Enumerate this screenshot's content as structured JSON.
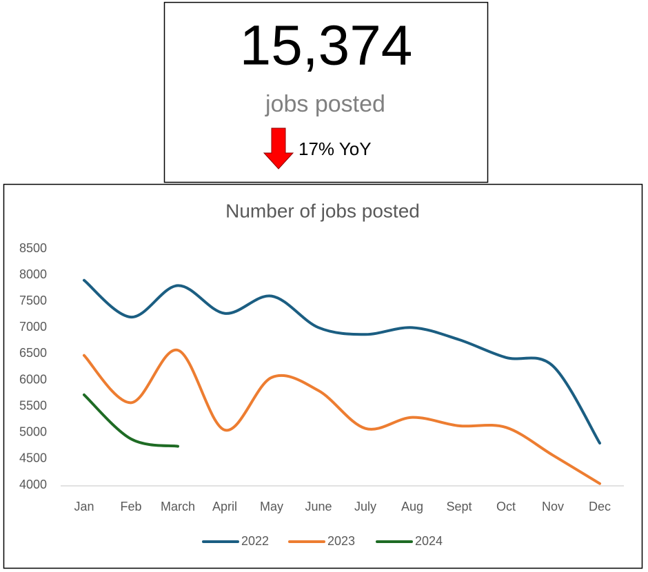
{
  "kpi": {
    "value": "15,374",
    "label": "jobs posted",
    "change": "17% YoY"
  },
  "chart_data": {
    "type": "line",
    "title": "Number of jobs posted",
    "categories": [
      "Jan",
      "Feb",
      "March",
      "April",
      "May",
      "June",
      "July",
      "Aug",
      "Sept",
      "Oct",
      "Nov",
      "Dec"
    ],
    "series": [
      {
        "name": "2022",
        "color": "#1b5e82",
        "values": [
          7900,
          7200,
          7800,
          7270,
          7600,
          7000,
          6870,
          7000,
          6770,
          6430,
          6270,
          4800
        ]
      },
      {
        "name": "2023",
        "color": "#ed7d31",
        "values": [
          6470,
          5570,
          6570,
          5050,
          6050,
          5800,
          5080,
          5290,
          5130,
          5100,
          4570,
          4030
        ]
      },
      {
        "name": "2024",
        "color": "#1e6b24",
        "values": [
          5720,
          4880,
          4740,
          null,
          null,
          null,
          null,
          null,
          null,
          null,
          null,
          null
        ]
      }
    ],
    "ylim": [
      4000,
      8500
    ],
    "yticks": [
      4000,
      4500,
      5000,
      5500,
      6000,
      6500,
      7000,
      7500,
      8000,
      8500
    ],
    "grid": false,
    "legend": "bottom",
    "smooth": true
  }
}
